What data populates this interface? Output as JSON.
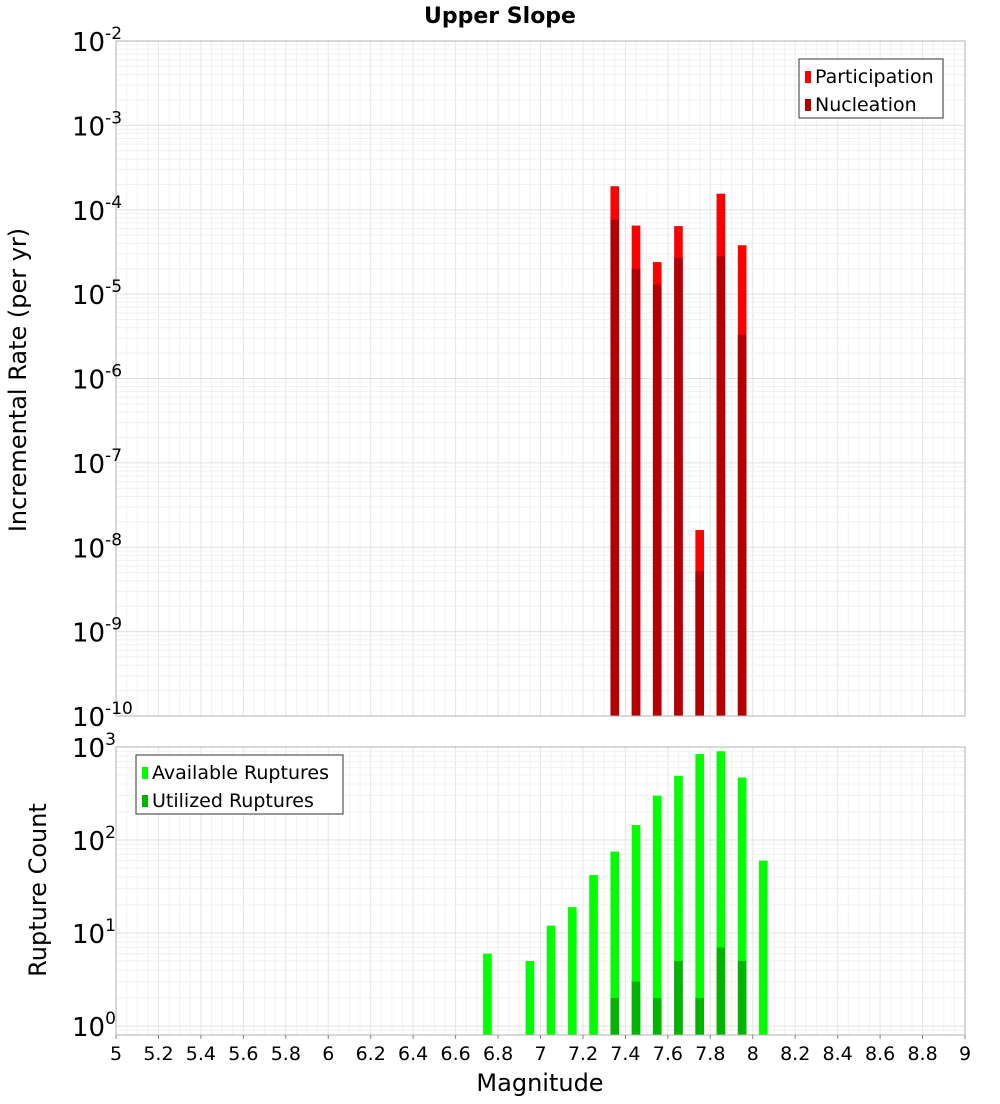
{
  "chart_data": [
    {
      "type": "bar",
      "title": "Upper Slope",
      "ylabel": "Incremental Rate (per yr)",
      "xlabel": "",
      "yscale": "log",
      "ylim": [
        1e-10,
        0.01
      ],
      "xlim": [
        5,
        9
      ],
      "grid": true,
      "legend_position": "top-right",
      "y_ticks": [
        {
          "base": "10",
          "exp": "-10"
        },
        {
          "base": "10",
          "exp": "-9"
        },
        {
          "base": "10",
          "exp": "-8"
        },
        {
          "base": "10",
          "exp": "-7"
        },
        {
          "base": "10",
          "exp": "-6"
        },
        {
          "base": "10",
          "exp": "-5"
        },
        {
          "base": "10",
          "exp": "-4"
        },
        {
          "base": "10",
          "exp": "-3"
        },
        {
          "base": "10",
          "exp": "-2"
        }
      ],
      "x": [
        7.35,
        7.45,
        7.55,
        7.65,
        7.75,
        7.85,
        7.95
      ],
      "series": [
        {
          "name": "Participation",
          "color": "#ff0000",
          "values": [
            0.00019,
            6.5e-05,
            2.4e-05,
            6.4e-05,
            1.6e-08,
            0.000155,
            3.8e-05
          ]
        },
        {
          "name": "Nucleation",
          "color": "#b40000",
          "values": [
            7.6e-05,
            2e-05,
            1.3e-05,
            2.7e-05,
            5.2e-09,
            2.8e-05,
            3.3e-06
          ]
        }
      ]
    },
    {
      "type": "bar",
      "title": "",
      "ylabel": "Rupture Count",
      "xlabel": "Magnitude",
      "yscale": "log",
      "ylim": [
        0.8,
        1000
      ],
      "xlim": [
        5,
        9
      ],
      "grid": true,
      "legend_position": "top-left",
      "y_ticks": [
        {
          "base": "10",
          "exp": "0",
          "value": 1
        },
        {
          "base": "10",
          "exp": "1",
          "value": 10
        },
        {
          "base": "10",
          "exp": "2",
          "value": 100
        },
        {
          "base": "10",
          "exp": "3",
          "value": 1000
        }
      ],
      "x_ticks": [
        "5",
        "5.2",
        "5.4",
        "5.6",
        "5.8",
        "6",
        "6.2",
        "6.4",
        "6.6",
        "6.8",
        "7",
        "7.2",
        "7.4",
        "7.6",
        "7.8",
        "8",
        "8.2",
        "8.4",
        "8.6",
        "8.8",
        "9"
      ],
      "series": [
        {
          "name": "Available Ruptures",
          "color": "#00ff00",
          "x": [
            6.75,
            6.95,
            7.05,
            7.15,
            7.25,
            7.35,
            7.45,
            7.55,
            7.65,
            7.75,
            7.85,
            7.95,
            8.05
          ],
          "values": [
            6,
            5,
            12,
            19,
            42,
            75,
            145,
            300,
            490,
            840,
            900,
            470,
            60
          ]
        },
        {
          "name": "Utilized Ruptures",
          "color": "#00b400",
          "x": [
            7.35,
            7.45,
            7.55,
            7.65,
            7.75,
            7.85,
            7.95
          ],
          "values": [
            2,
            3,
            2,
            5,
            2,
            7,
            5
          ]
        }
      ]
    }
  ]
}
